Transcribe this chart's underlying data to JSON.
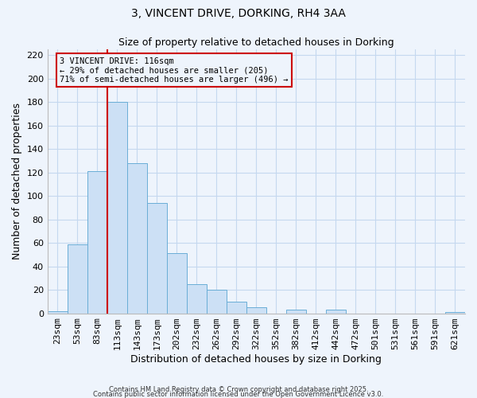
{
  "title": "3, VINCENT DRIVE, DORKING, RH4 3AA",
  "subtitle": "Size of property relative to detached houses in Dorking",
  "xlabel": "Distribution of detached houses by size in Dorking",
  "ylabel": "Number of detached properties",
  "categories": [
    "23sqm",
    "53sqm",
    "83sqm",
    "113sqm",
    "143sqm",
    "173sqm",
    "202sqm",
    "232sqm",
    "262sqm",
    "292sqm",
    "322sqm",
    "352sqm",
    "382sqm",
    "412sqm",
    "442sqm",
    "472sqm",
    "501sqm",
    "531sqm",
    "561sqm",
    "591sqm",
    "621sqm"
  ],
  "values": [
    2,
    59,
    121,
    180,
    128,
    94,
    51,
    25,
    20,
    10,
    5,
    0,
    3,
    0,
    3,
    0,
    0,
    0,
    0,
    0,
    1
  ],
  "bar_color": "#cce0f5",
  "bar_edge_color": "#6aaed6",
  "background_color": "#eef4fc",
  "grid_color": "#c5d8ef",
  "property_line_x": 2.5,
  "property_line_color": "#cc0000",
  "annotation_text_line1": "3 VINCENT DRIVE: 116sqm",
  "annotation_text_line2": "← 29% of detached houses are smaller (205)",
  "annotation_text_line3": "71% of semi-detached houses are larger (496) →",
  "annotation_box_color": "#cc0000",
  "ylim": [
    0,
    225
  ],
  "yticks": [
    0,
    20,
    40,
    60,
    80,
    100,
    120,
    140,
    160,
    180,
    200,
    220
  ],
  "footer1": "Contains HM Land Registry data © Crown copyright and database right 2025.",
  "footer2": "Contains public sector information licensed under the Open Government Licence v3.0."
}
